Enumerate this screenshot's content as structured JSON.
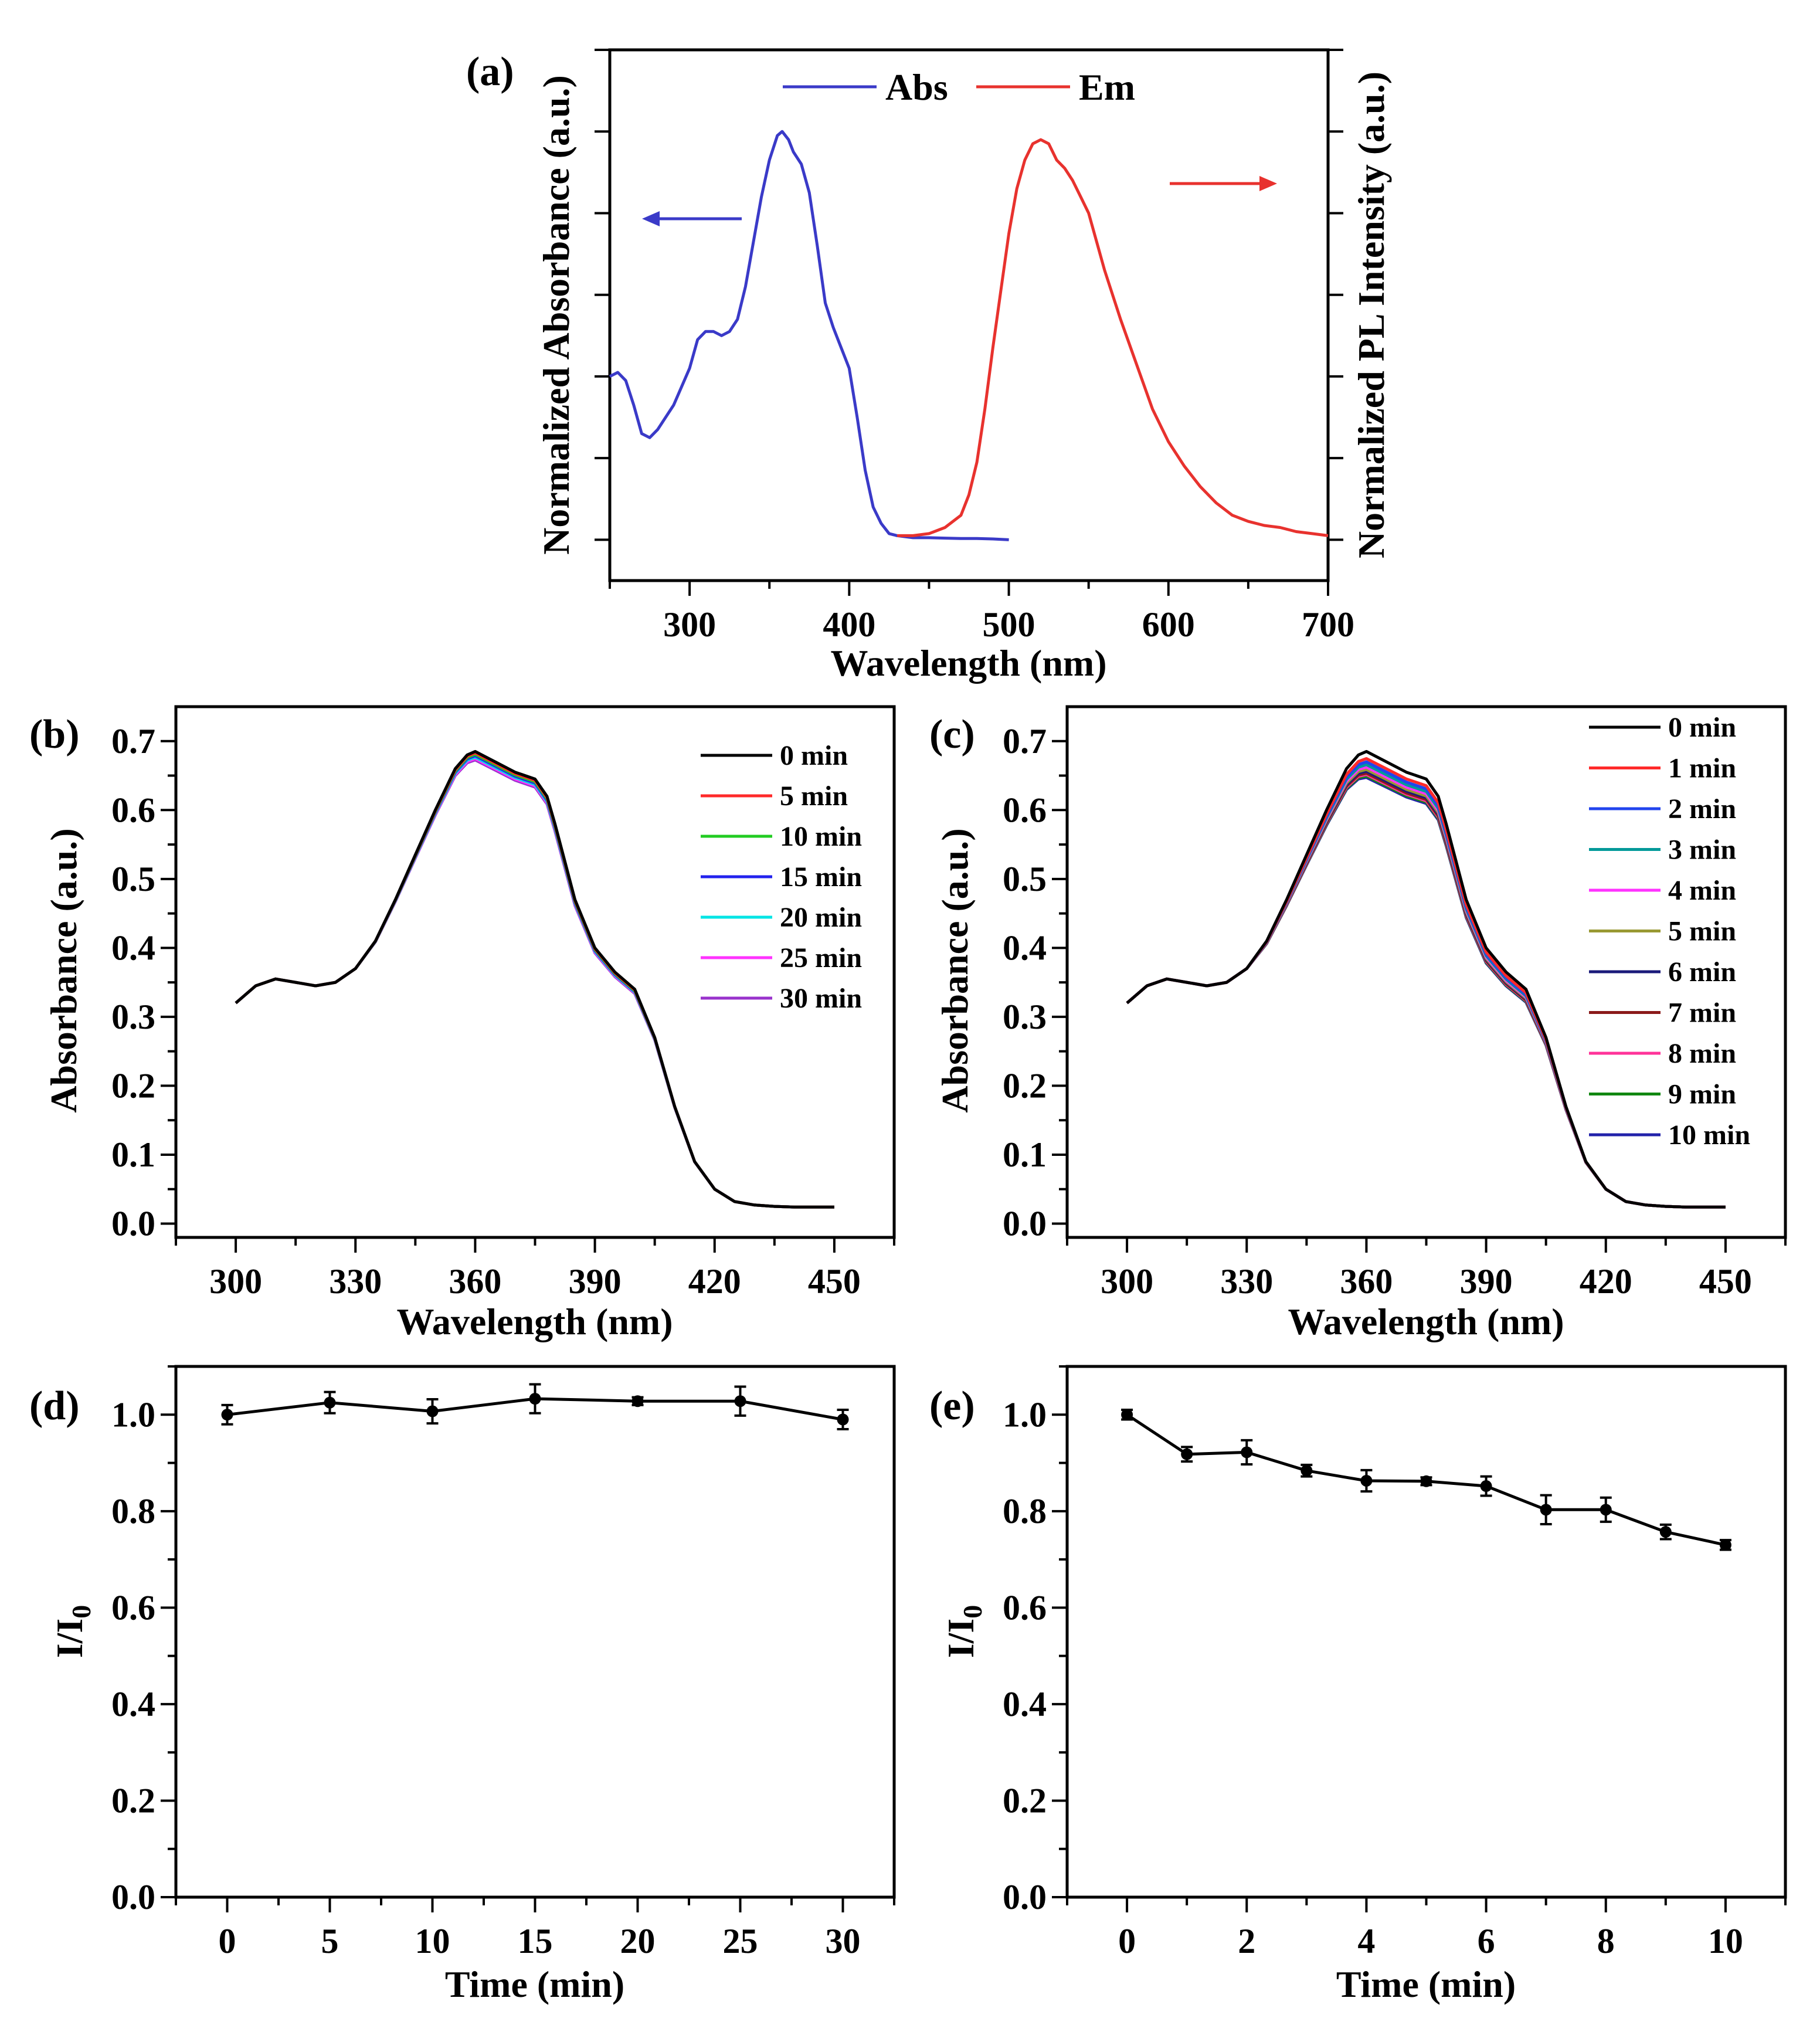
{
  "chart_data": [
    {
      "panel": "(a)",
      "type": "line",
      "xlabel": "Wavelength (nm)",
      "ylabel_left": "Normalized Absorbance (a.u.)",
      "ylabel_right": "Normalized PL Intensity (a.u.)",
      "xlim": [
        250,
        700
      ],
      "ylim": [
        -0.1,
        1.2
      ],
      "xticks": [
        300,
        400,
        500,
        600,
        700
      ],
      "series": [
        {
          "name": "Abs",
          "color": "#3a3ac8",
          "x": [
            250,
            255,
            260,
            265,
            270,
            275,
            280,
            290,
            300,
            305,
            310,
            315,
            320,
            325,
            330,
            335,
            340,
            345,
            350,
            355,
            358,
            362,
            365,
            370,
            375,
            380,
            385,
            390,
            395,
            400,
            405,
            410,
            415,
            420,
            425,
            430,
            440,
            450,
            460,
            470,
            480,
            490,
            500
          ],
          "y": [
            0.4,
            0.41,
            0.39,
            0.33,
            0.26,
            0.25,
            0.27,
            0.33,
            0.42,
            0.49,
            0.51,
            0.51,
            0.5,
            0.51,
            0.54,
            0.62,
            0.73,
            0.84,
            0.93,
            0.99,
            1.0,
            0.98,
            0.95,
            0.92,
            0.85,
            0.72,
            0.58,
            0.52,
            0.47,
            0.42,
            0.3,
            0.17,
            0.08,
            0.04,
            0.015,
            0.01,
            0.005,
            0.005,
            0.004,
            0.003,
            0.003,
            0.002,
            0.0
          ]
        },
        {
          "name": "Em",
          "color": "#e8322e",
          "x": [
            430,
            440,
            450,
            460,
            470,
            475,
            480,
            485,
            490,
            495,
            500,
            505,
            510,
            515,
            520,
            525,
            530,
            535,
            540,
            545,
            550,
            555,
            560,
            570,
            580,
            590,
            600,
            610,
            620,
            630,
            640,
            650,
            660,
            670,
            680,
            690,
            700
          ],
          "y": [
            0.01,
            0.01,
            0.015,
            0.03,
            0.06,
            0.11,
            0.19,
            0.32,
            0.47,
            0.61,
            0.75,
            0.86,
            0.93,
            0.97,
            0.98,
            0.97,
            0.93,
            0.91,
            0.88,
            0.84,
            0.8,
            0.73,
            0.66,
            0.54,
            0.43,
            0.32,
            0.24,
            0.18,
            0.13,
            0.09,
            0.06,
            0.045,
            0.035,
            0.03,
            0.02,
            0.015,
            0.01
          ]
        }
      ],
      "legend": [
        "Abs",
        "Em"
      ]
    },
    {
      "panel": "(b)",
      "type": "line",
      "xlabel": "Wavelength (nm)",
      "ylabel": "Absorbance (a.u.)",
      "xlim": [
        285,
        465
      ],
      "ylim": [
        -0.02,
        0.75
      ],
      "xticks": [
        300,
        330,
        360,
        390,
        420,
        450
      ],
      "yticks": [
        0.0,
        0.1,
        0.2,
        0.3,
        0.4,
        0.5,
        0.6,
        0.7
      ],
      "x": [
        300,
        305,
        310,
        315,
        320,
        325,
        330,
        335,
        340,
        345,
        350,
        355,
        358,
        360,
        365,
        370,
        375,
        378,
        380,
        385,
        390,
        395,
        400,
        405,
        410,
        415,
        420,
        425,
        430,
        435,
        440,
        445,
        450
      ],
      "base": [
        0.32,
        0.345,
        0.355,
        0.35,
        0.345,
        0.35,
        0.37,
        0.41,
        0.47,
        0.535,
        0.6,
        0.66,
        0.68,
        0.685,
        0.67,
        0.655,
        0.645,
        0.62,
        0.58,
        0.47,
        0.4,
        0.365,
        0.34,
        0.27,
        0.17,
        0.09,
        0.05,
        0.032,
        0.027,
        0.025,
        0.024,
        0.024,
        0.024
      ],
      "series": [
        {
          "name": "0 min",
          "color": "#000000",
          "scale": 1.0
        },
        {
          "name": "5 min",
          "color": "#ff2a2a",
          "scale": 0.997
        },
        {
          "name": "10 min",
          "color": "#22cc22",
          "scale": 0.994
        },
        {
          "name": "15 min",
          "color": "#2222ee",
          "scale": 0.991
        },
        {
          "name": "20 min",
          "color": "#00e5e5",
          "scale": 0.988
        },
        {
          "name": "25 min",
          "color": "#ff33ff",
          "scale": 0.985
        },
        {
          "name": "30 min",
          "color": "#9933cc",
          "scale": 0.982
        }
      ]
    },
    {
      "panel": "(c)",
      "type": "line",
      "xlabel": "Wavelength (nm)",
      "ylabel": "Absorbance (a.u.)",
      "xlim": [
        285,
        465
      ],
      "ylim": [
        -0.02,
        0.75
      ],
      "xticks": [
        300,
        330,
        360,
        390,
        420,
        450
      ],
      "yticks": [
        0.0,
        0.1,
        0.2,
        0.3,
        0.4,
        0.5,
        0.6,
        0.7
      ],
      "x": [
        300,
        305,
        310,
        315,
        320,
        325,
        330,
        335,
        340,
        345,
        350,
        355,
        358,
        360,
        365,
        370,
        375,
        378,
        380,
        385,
        390,
        395,
        400,
        405,
        410,
        415,
        420,
        425,
        430,
        435,
        440,
        445,
        450
      ],
      "base": [
        0.32,
        0.345,
        0.355,
        0.35,
        0.345,
        0.35,
        0.37,
        0.41,
        0.47,
        0.535,
        0.6,
        0.66,
        0.68,
        0.685,
        0.67,
        0.655,
        0.645,
        0.62,
        0.58,
        0.47,
        0.4,
        0.365,
        0.34,
        0.27,
        0.17,
        0.09,
        0.05,
        0.032,
        0.027,
        0.025,
        0.024,
        0.024,
        0.024
      ],
      "series": [
        {
          "name": "0 min",
          "color": "#000000",
          "scale": 1.0
        },
        {
          "name": "1 min",
          "color": "#ff2a2a",
          "scale": 0.985
        },
        {
          "name": "2 min",
          "color": "#2244ee",
          "scale": 0.978
        },
        {
          "name": "3 min",
          "color": "#009999",
          "scale": 0.972
        },
        {
          "name": "4 min",
          "color": "#ff33ff",
          "scale": 0.967
        },
        {
          "name": "5 min",
          "color": "#999933",
          "scale": 0.962
        },
        {
          "name": "6 min",
          "color": "#1a1a7a",
          "scale": 0.958
        },
        {
          "name": "7 min",
          "color": "#8b1a1a",
          "scale": 0.954
        },
        {
          "name": "8 min",
          "color": "#ff3399",
          "scale": 0.951
        },
        {
          "name": "9 min",
          "color": "#118811",
          "scale": 0.948
        },
        {
          "name": "10 min",
          "color": "#2222aa",
          "scale": 0.945
        }
      ]
    },
    {
      "panel": "(d)",
      "type": "line",
      "xlabel": "Time (min)",
      "ylabel": "I/I",
      "ylabel_sub": "0",
      "xlim": [
        -2.5,
        32.5
      ],
      "ylim": [
        0.0,
        1.1
      ],
      "xticks": [
        0,
        5,
        10,
        15,
        20,
        25,
        30
      ],
      "yticks": [
        0.0,
        0.2,
        0.4,
        0.6,
        0.8,
        1.0
      ],
      "x": [
        0,
        5,
        10,
        15,
        20,
        25,
        30
      ],
      "y": [
        1.0,
        1.025,
        1.007,
        1.033,
        1.028,
        1.028,
        0.99
      ],
      "err": [
        0.02,
        0.022,
        0.025,
        0.03,
        0.008,
        0.03,
        0.02
      ]
    },
    {
      "panel": "(e)",
      "type": "line",
      "xlabel": "Time (min)",
      "ylabel": "I/I",
      "ylabel_sub": "0",
      "xlim": [
        -1,
        11
      ],
      "ylim": [
        0.0,
        1.1
      ],
      "xticks": [
        0,
        2,
        4,
        6,
        8,
        10
      ],
      "yticks": [
        0.0,
        0.2,
        0.4,
        0.6,
        0.8,
        1.0
      ],
      "x": [
        0,
        1,
        2,
        3,
        4,
        5,
        6,
        7,
        8,
        9,
        10
      ],
      "y": [
        1.0,
        0.918,
        0.922,
        0.884,
        0.863,
        0.862,
        0.852,
        0.803,
        0.803,
        0.757,
        0.73
      ],
      "err": [
        0.01,
        0.015,
        0.025,
        0.012,
        0.022,
        0.008,
        0.02,
        0.03,
        0.025,
        0.015,
        0.01
      ]
    }
  ]
}
